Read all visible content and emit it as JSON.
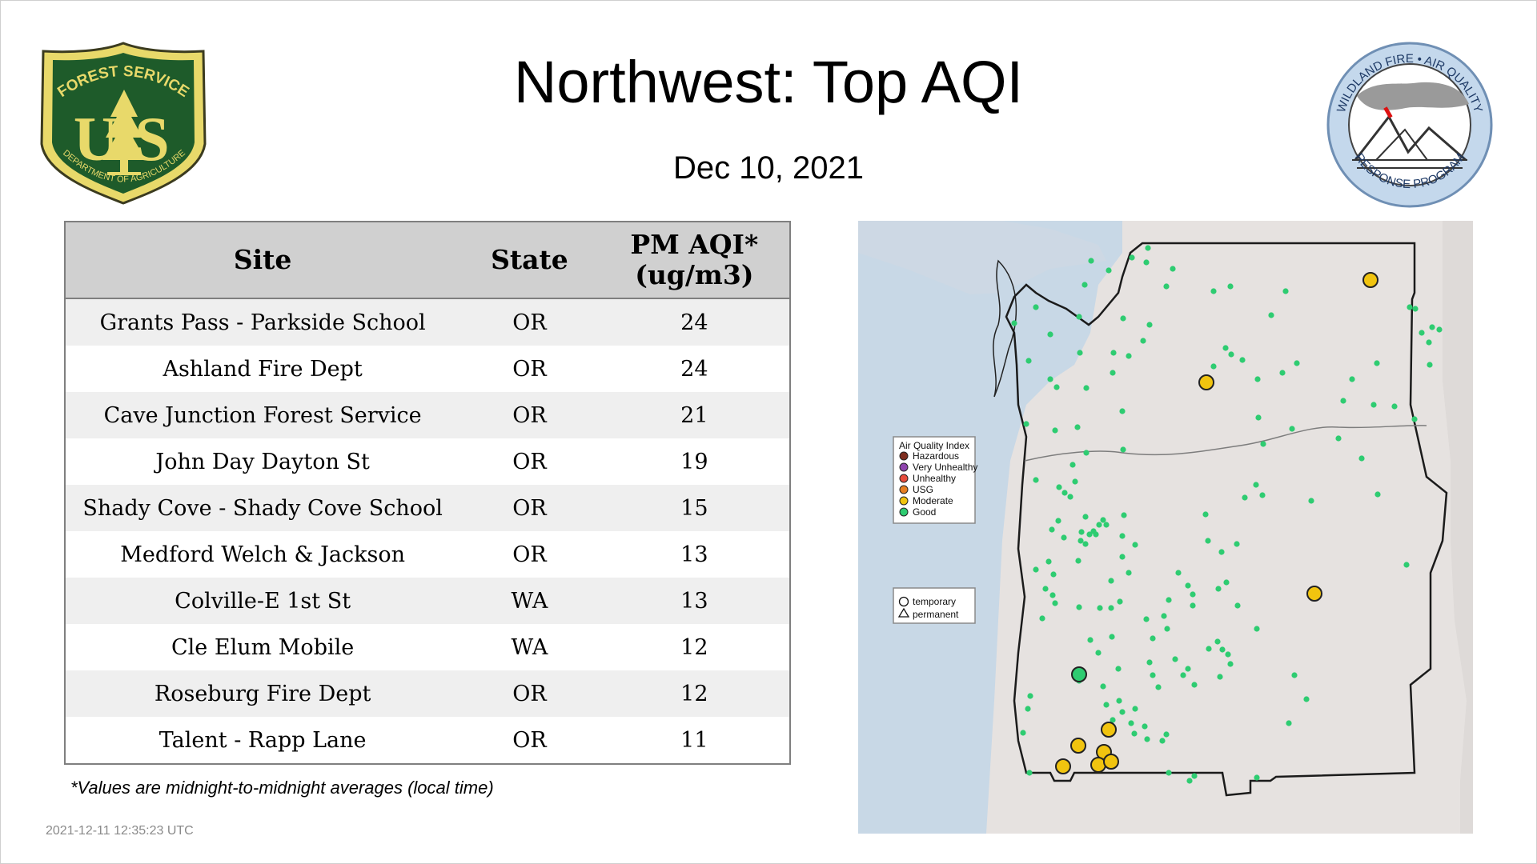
{
  "header": {
    "title": "Northwest: Top AQI",
    "date": "Dec 10, 2021"
  },
  "logos": {
    "forest_service": {
      "top": "FOREST SERVICE",
      "letters": "US",
      "bottom": "DEPARTMENT OF AGRICULTURE"
    },
    "wildland": {
      "top": "WILDLAND FIRE • AIR QUALITY",
      "bottom": "RESPONSE PROGRAM"
    }
  },
  "table": {
    "headers": {
      "site": "Site",
      "state": "State",
      "aqi_line1": "PM AQI*",
      "aqi_line2": "(ug/m3)"
    },
    "rows": [
      {
        "site": "Grants Pass - Parkside School",
        "state": "OR",
        "aqi": "24"
      },
      {
        "site": "Ashland Fire Dept",
        "state": "OR",
        "aqi": "24"
      },
      {
        "site": "Cave Junction Forest Service",
        "state": "OR",
        "aqi": "21"
      },
      {
        "site": "John Day Dayton St",
        "state": "OR",
        "aqi": "19"
      },
      {
        "site": "Shady Cove - Shady Cove School",
        "state": "OR",
        "aqi": "15"
      },
      {
        "site": "Medford Welch & Jackson",
        "state": "OR",
        "aqi": "13"
      },
      {
        "site": "Colville-E 1st St",
        "state": "WA",
        "aqi": "13"
      },
      {
        "site": "Cle Elum Mobile",
        "state": "WA",
        "aqi": "12"
      },
      {
        "site": "Roseburg Fire Dept",
        "state": "OR",
        "aqi": "12"
      },
      {
        "site": "Talent - Rapp Lane",
        "state": "OR",
        "aqi": "11"
      }
    ]
  },
  "footnote": "*Values are midnight-to-midnight averages (local time)",
  "timestamp": "2021-12-11 12:35:23 UTC",
  "map": {
    "legend_title": "Air Quality Index",
    "categories": [
      {
        "label": "Hazardous",
        "color": "#7e2d1f"
      },
      {
        "label": "Very Unhealthy",
        "color": "#8e44ad"
      },
      {
        "label": "Unhealthy",
        "color": "#e74c3c"
      },
      {
        "label": "USG",
        "color": "#e67e22"
      },
      {
        "label": "Moderate",
        "color": "#f1c40f"
      },
      {
        "label": "Good",
        "color": "#2ecc71"
      }
    ],
    "shape_legend": {
      "temporary": "temporary",
      "permanent": "permanent"
    },
    "colors": {
      "water": "#c8d8e6",
      "land": "#e6e2e0"
    }
  }
}
